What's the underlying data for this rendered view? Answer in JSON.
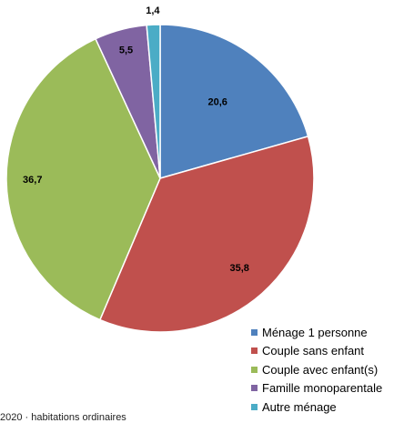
{
  "chart_data": {
    "type": "pie",
    "slices": [
      {
        "label": "Ménage 1 personne",
        "value": 20.6,
        "value_label": "20,6",
        "color": "#4F81BD"
      },
      {
        "label": "Couple sans enfant",
        "value": 35.8,
        "value_label": "35,8",
        "color": "#C0504D"
      },
      {
        "label": "Couple avec enfant(s)",
        "value": 36.7,
        "value_label": "36,7",
        "color": "#9BBB59"
      },
      {
        "label": "Famille monoparentale",
        "value": 5.5,
        "value_label": "5,5",
        "color": "#8064A2"
      },
      {
        "label": "Autre ménage",
        "value": 1.4,
        "value_label": "1,4",
        "color": "#4BACC6"
      }
    ],
    "start": "12 o'clock",
    "direction": "clockwise",
    "legend_position": "bottom-right"
  },
  "footnote": "2020 · habitations ordinaires"
}
